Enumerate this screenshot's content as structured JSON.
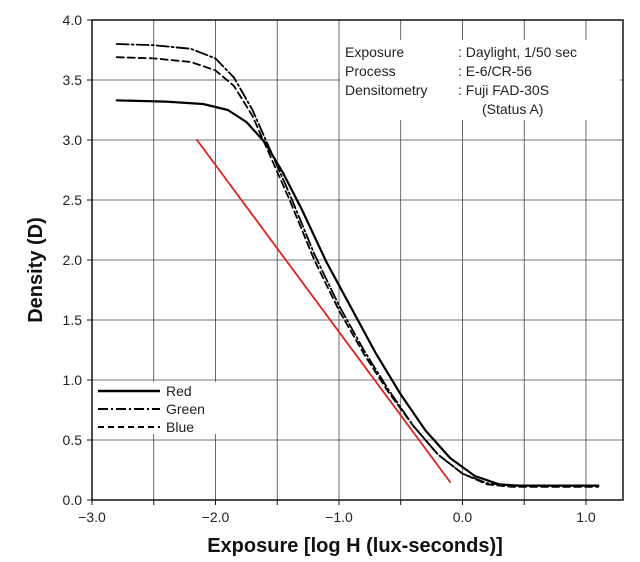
{
  "chart_data": {
    "type": "line",
    "xlabel": "Exposure [log H (lux-seconds)]",
    "ylabel": "Density (D)",
    "xlim": [
      -3.0,
      1.3
    ],
    "ylim": [
      0.0,
      4.0
    ],
    "x_ticks": [
      "−3.0",
      "−2.0",
      "−1.0",
      "0.0",
      "1.0"
    ],
    "y_ticks": [
      "0.0",
      "0.5",
      "1.0",
      "1.5",
      "2.0",
      "2.5",
      "3.0",
      "3.5",
      "4.0"
    ],
    "grid": true,
    "legend_position": "bottom-left",
    "notes": [
      {
        "label": "Exposure",
        "value": ": Daylight, 1/50 sec"
      },
      {
        "label": "Process",
        "value": ": E-6/CR-56"
      },
      {
        "label": "Densitometry",
        "value": ": Fuji FAD-30S"
      },
      {
        "label": "",
        "value": "(Status A)"
      }
    ],
    "series": [
      {
        "name": "Red",
        "style": "solid",
        "color": "#000000",
        "x": [
          -2.8,
          -2.4,
          -2.1,
          -1.9,
          -1.75,
          -1.6,
          -1.45,
          -1.3,
          -1.1,
          -0.9,
          -0.7,
          -0.5,
          -0.3,
          -0.1,
          0.1,
          0.3,
          0.45,
          0.6,
          0.8,
          1.0,
          1.1
        ],
        "y": [
          3.33,
          3.32,
          3.3,
          3.25,
          3.15,
          2.98,
          2.72,
          2.42,
          1.98,
          1.6,
          1.22,
          0.88,
          0.58,
          0.35,
          0.2,
          0.13,
          0.12,
          0.12,
          0.12,
          0.12,
          0.12
        ]
      },
      {
        "name": "Green",
        "style": "dash-dot",
        "color": "#000000",
        "x": [
          -2.8,
          -2.5,
          -2.2,
          -2.0,
          -1.85,
          -1.7,
          -1.55,
          -1.4,
          -1.2,
          -1.0,
          -0.8,
          -0.6,
          -0.4,
          -0.2,
          0.0,
          0.2,
          0.4,
          0.6,
          0.8,
          1.0,
          1.1
        ],
        "y": [
          3.8,
          3.79,
          3.76,
          3.68,
          3.52,
          3.25,
          2.9,
          2.55,
          2.05,
          1.62,
          1.25,
          0.92,
          0.62,
          0.38,
          0.22,
          0.14,
          0.12,
          0.12,
          0.12,
          0.12,
          0.12
        ]
      },
      {
        "name": "Blue",
        "style": "dashed",
        "color": "#000000",
        "x": [
          -2.8,
          -2.5,
          -2.2,
          -2.0,
          -1.85,
          -1.7,
          -1.55,
          -1.4,
          -1.2,
          -1.0,
          -0.8,
          -0.6,
          -0.4,
          -0.2,
          0.0,
          0.2,
          0.4,
          0.6,
          0.8,
          1.0,
          1.1
        ],
        "y": [
          3.69,
          3.68,
          3.65,
          3.58,
          3.45,
          3.2,
          2.85,
          2.5,
          2.0,
          1.58,
          1.22,
          0.9,
          0.62,
          0.38,
          0.22,
          0.13,
          0.11,
          0.11,
          0.11,
          0.11,
          0.11
        ]
      },
      {
        "style": "solid",
        "color": "#e02020",
        "x": [
          -2.15,
          -0.1
        ],
        "y": [
          3.0,
          0.15
        ]
      }
    ]
  }
}
